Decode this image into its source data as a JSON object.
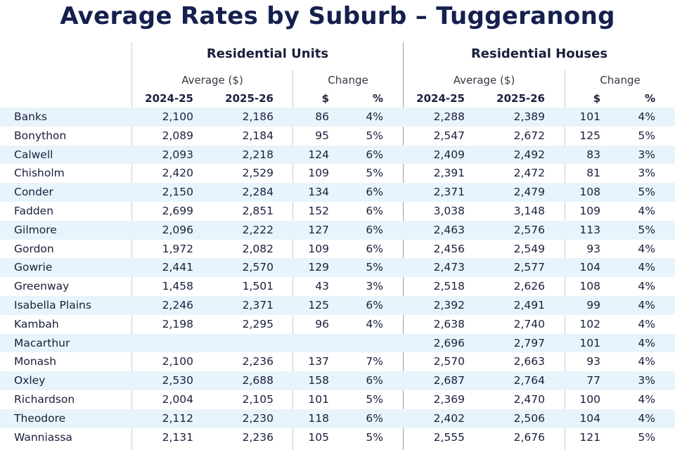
{
  "title": "Average Rates by Suburb – Tuggeranong",
  "groups": {
    "units": {
      "label": "Residential Units",
      "average_label": "Average ($)",
      "change_label": "Change",
      "columns": [
        "2024-25",
        "2025-26",
        "$",
        "%"
      ]
    },
    "houses": {
      "label": "Residential Houses",
      "average_label": "Average ($)",
      "change_label": "Change",
      "columns": [
        "2024-25",
        "2025-26",
        "$",
        "%"
      ]
    }
  },
  "rows": [
    {
      "suburb": "Banks",
      "u": [
        "2,100",
        "2,186",
        "86",
        "4%"
      ],
      "h": [
        "2,288",
        "2,389",
        "101",
        "4%"
      ]
    },
    {
      "suburb": "Bonython",
      "u": [
        "2,089",
        "2,184",
        "95",
        "5%"
      ],
      "h": [
        "2,547",
        "2,672",
        "125",
        "5%"
      ]
    },
    {
      "suburb": "Calwell",
      "u": [
        "2,093",
        "2,218",
        "124",
        "6%"
      ],
      "h": [
        "2,409",
        "2,492",
        "83",
        "3%"
      ]
    },
    {
      "suburb": "Chisholm",
      "u": [
        "2,420",
        "2,529",
        "109",
        "5%"
      ],
      "h": [
        "2,391",
        "2,472",
        "81",
        "3%"
      ]
    },
    {
      "suburb": "Conder",
      "u": [
        "2,150",
        "2,284",
        "134",
        "6%"
      ],
      "h": [
        "2,371",
        "2,479",
        "108",
        "5%"
      ]
    },
    {
      "suburb": "Fadden",
      "u": [
        "2,699",
        "2,851",
        "152",
        "6%"
      ],
      "h": [
        "3,038",
        "3,148",
        "109",
        "4%"
      ]
    },
    {
      "suburb": "Gilmore",
      "u": [
        "2,096",
        "2,222",
        "127",
        "6%"
      ],
      "h": [
        "2,463",
        "2,576",
        "113",
        "5%"
      ]
    },
    {
      "suburb": "Gordon",
      "u": [
        "1,972",
        "2,082",
        "109",
        "6%"
      ],
      "h": [
        "2,456",
        "2,549",
        "93",
        "4%"
      ]
    },
    {
      "suburb": "Gowrie",
      "u": [
        "2,441",
        "2,570",
        "129",
        "5%"
      ],
      "h": [
        "2,473",
        "2,577",
        "104",
        "4%"
      ]
    },
    {
      "suburb": "Greenway",
      "u": [
        "1,458",
        "1,501",
        "43",
        "3%"
      ],
      "h": [
        "2,518",
        "2,626",
        "108",
        "4%"
      ]
    },
    {
      "suburb": "Isabella Plains",
      "u": [
        "2,246",
        "2,371",
        "125",
        "6%"
      ],
      "h": [
        "2,392",
        "2,491",
        "99",
        "4%"
      ]
    },
    {
      "suburb": "Kambah",
      "u": [
        "2,198",
        "2,295",
        "96",
        "4%"
      ],
      "h": [
        "2,638",
        "2,740",
        "102",
        "4%"
      ]
    },
    {
      "suburb": "Macarthur",
      "u": [
        "",
        "",
        "",
        ""
      ],
      "h": [
        "2,696",
        "2,797",
        "101",
        "4%"
      ]
    },
    {
      "suburb": "Monash",
      "u": [
        "2,100",
        "2,236",
        "137",
        "7%"
      ],
      "h": [
        "2,570",
        "2,663",
        "93",
        "4%"
      ]
    },
    {
      "suburb": "Oxley",
      "u": [
        "2,530",
        "2,688",
        "158",
        "6%"
      ],
      "h": [
        "2,687",
        "2,764",
        "77",
        "3%"
      ]
    },
    {
      "suburb": "Richardson",
      "u": [
        "2,004",
        "2,105",
        "101",
        "5%"
      ],
      "h": [
        "2,369",
        "2,470",
        "100",
        "4%"
      ]
    },
    {
      "suburb": "Theodore",
      "u": [
        "2,112",
        "2,230",
        "118",
        "6%"
      ],
      "h": [
        "2,402",
        "2,506",
        "104",
        "4%"
      ]
    },
    {
      "suburb": "Wanniassa",
      "u": [
        "2,131",
        "2,236",
        "105",
        "5%"
      ],
      "h": [
        "2,555",
        "2,676",
        "121",
        "5%"
      ]
    }
  ],
  "colors": {
    "title": "#15204e",
    "row_shade": "#e8f4fb",
    "divider": "#c8ccd4"
  }
}
